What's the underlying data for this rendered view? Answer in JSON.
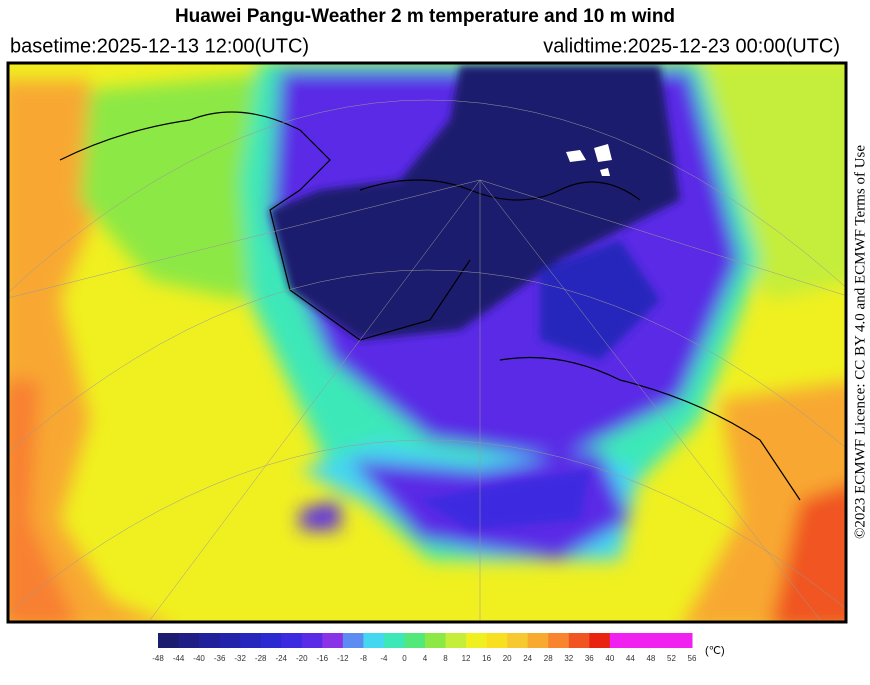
{
  "header": {
    "title": "Huawei Pangu-Weather  2 m temperature and 10 m wind",
    "basetime": "basetime:2025-12-13 12:00(UTC)",
    "validtime": "validtime:2025-12-23 00:00(UTC)"
  },
  "licence": "©2023 ECMWF Licence: CC BY 4.0 and ECMWF Terms of Use",
  "colorbar": {
    "unit": "(℃)",
    "ticks": [
      -48,
      -44,
      -40,
      -36,
      -32,
      -28,
      -24,
      -20,
      -16,
      -12,
      -8,
      -4,
      0,
      4,
      8,
      12,
      16,
      20,
      24,
      28,
      32,
      36,
      40,
      44,
      48,
      52,
      56
    ],
    "colors": [
      "#1c1c6e",
      "#1e1e84",
      "#20209a",
      "#2222aa",
      "#2626bc",
      "#2a2ad0",
      "#3c2ae0",
      "#5a2ae6",
      "#8a32e6",
      "#5c8cf2",
      "#44d8f0",
      "#3ce8b8",
      "#52e87a",
      "#8ce844",
      "#c4ee3a",
      "#f0f020",
      "#f8e020",
      "#f8c830",
      "#f8aa30",
      "#f88430",
      "#f05420",
      "#e82410",
      "#f020f0",
      "#f020f0",
      "#f020f0",
      "#f020f0"
    ]
  }
}
